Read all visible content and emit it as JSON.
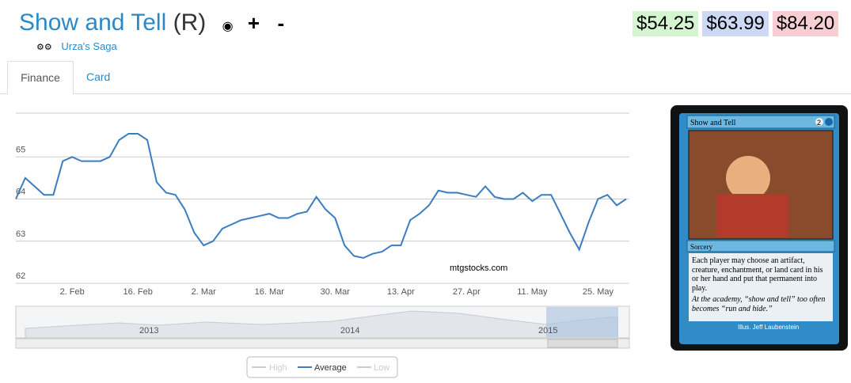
{
  "header": {
    "title": "Show and Tell",
    "rarity": "(R)",
    "plus": "+",
    "minus": "-",
    "set": "Urza's Saga",
    "prices": [
      "$54.25",
      "$63.99",
      "$84.20"
    ]
  },
  "tabs": [
    "Finance",
    "Card"
  ],
  "chart_data": {
    "type": "line",
    "grid": true,
    "categories": [
      null,
      null,
      null,
      null,
      null,
      null,
      "2. Feb",
      null,
      null,
      null,
      null,
      null,
      null,
      "16. Feb",
      null,
      null,
      null,
      null,
      null,
      null,
      "2. Mar",
      null,
      null,
      null,
      null,
      null,
      null,
      "16. Mar",
      null,
      null,
      null,
      null,
      null,
      null,
      "30. Mar",
      null,
      null,
      null,
      null,
      null,
      null,
      "13. Apr",
      null,
      null,
      null,
      null,
      null,
      null,
      "27. Apr",
      null,
      null,
      null,
      null,
      null,
      null,
      "11. May",
      null,
      null,
      null,
      null,
      null,
      null,
      "25. May",
      null,
      null,
      null
    ],
    "series": [
      {
        "name": "Average",
        "color": "#3a7dc0",
        "values": [
          64.0,
          64.5,
          64.3,
          64.1,
          64.1,
          64.9,
          65.0,
          64.9,
          64.9,
          64.9,
          65.0,
          65.4,
          65.55,
          65.55,
          65.4,
          64.4,
          64.15,
          64.1,
          63.75,
          63.2,
          62.9,
          63.0,
          63.3,
          63.4,
          63.5,
          63.55,
          63.6,
          63.65,
          63.55,
          63.55,
          63.65,
          63.7,
          64.05,
          63.75,
          63.55,
          62.9,
          62.65,
          62.6,
          62.7,
          62.75,
          62.9,
          62.9,
          63.5,
          63.65,
          63.85,
          64.2,
          64.15,
          64.15,
          64.1,
          64.05,
          64.3,
          64.05,
          64.0,
          64.0,
          64.15,
          63.95,
          64.1,
          64.1,
          63.65,
          63.2,
          62.8,
          63.45,
          64.0,
          64.1,
          63.85,
          64.0
        ]
      }
    ],
    "ylim": [
      62,
      66
    ],
    "yticks": [
      62,
      63,
      64,
      65
    ],
    "watermark": "mtgstocks.com"
  },
  "navigator": {
    "labels": [
      "2013",
      "2014",
      "2015"
    ]
  },
  "legend": {
    "hidden": [
      "High",
      "Low"
    ]
  },
  "card": {
    "name": "Show and Tell",
    "cost": "2",
    "type": "Sorcery",
    "rules": "Each player may choose an artifact, creature, enchantment, or land card in his or her hand and put that permanent into play.",
    "flavor": "At the academy, “show and tell” too often becomes “run and hide.”",
    "illus": "Illus. Jeff Laubenstein"
  }
}
